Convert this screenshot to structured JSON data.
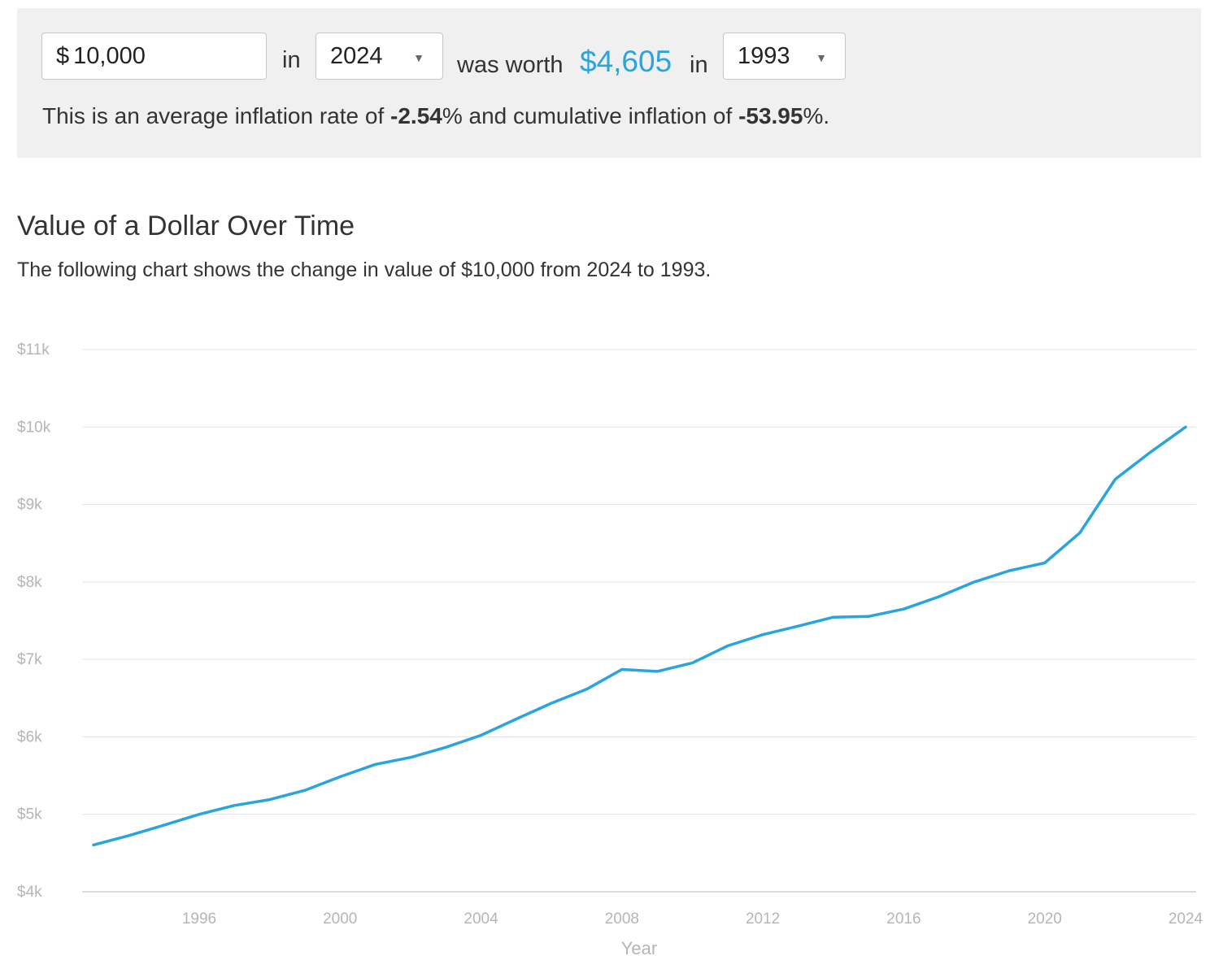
{
  "calculator": {
    "currency_symbol": "$",
    "amount": "10,000",
    "word_in_1": "in",
    "from_year": "2024",
    "word_was_worth": "was worth",
    "worth_value": "$4,605",
    "word_in_2": "in",
    "to_year": "1993",
    "summary_prefix": "This is an average inflation rate of ",
    "avg_rate": "-2.54",
    "summary_middle": "% and cumulative inflation of ",
    "cumulative": "-53.95",
    "summary_suffix": "%.",
    "caret_icon": "triangle-down"
  },
  "section": {
    "title": "Value of a Dollar Over Time",
    "description": "The following chart shows the change in value of $10,000 from 2024 to 1993."
  },
  "colors": {
    "accent": "#29a4dd",
    "panel_bg": "#f0f0f1",
    "grid": "#e3e3e3",
    "tick_text": "#b5b5b5"
  },
  "chart_data": {
    "type": "line",
    "title": "",
    "xlabel": "Year",
    "ylabel": "",
    "ylim": [
      4000,
      11000
    ],
    "xlim": [
      1993,
      2024
    ],
    "yticks": [
      {
        "value": 11000,
        "label": "$11k"
      },
      {
        "value": 10000,
        "label": "$10k"
      },
      {
        "value": 9000,
        "label": "$9k"
      },
      {
        "value": 8000,
        "label": "$8k"
      },
      {
        "value": 7000,
        "label": "$7k"
      },
      {
        "value": 6000,
        "label": "$6k"
      },
      {
        "value": 5000,
        "label": "$5k"
      },
      {
        "value": 4000,
        "label": "$4k"
      }
    ],
    "xticks": [
      1996,
      2000,
      2004,
      2008,
      2012,
      2016,
      2020,
      2024
    ],
    "grid": true,
    "series": [
      {
        "name": "",
        "color": "#29a4dd",
        "x": [
          1993,
          1994,
          1995,
          1996,
          1997,
          1998,
          1999,
          2000,
          2001,
          2002,
          2003,
          2004,
          2005,
          2006,
          2007,
          2008,
          2009,
          2010,
          2011,
          2012,
          2013,
          2014,
          2015,
          2016,
          2017,
          2018,
          2019,
          2020,
          2021,
          2022,
          2023,
          2024
        ],
        "y": [
          4605,
          4725,
          4860,
          5000,
          5115,
          5190,
          5310,
          5485,
          5645,
          5735,
          5865,
          6020,
          6230,
          6435,
          6615,
          6870,
          6845,
          6955,
          7175,
          7320,
          7430,
          7545,
          7555,
          7650,
          7810,
          8000,
          8145,
          8245,
          8635,
          9325,
          9675,
          10000
        ]
      }
    ]
  }
}
